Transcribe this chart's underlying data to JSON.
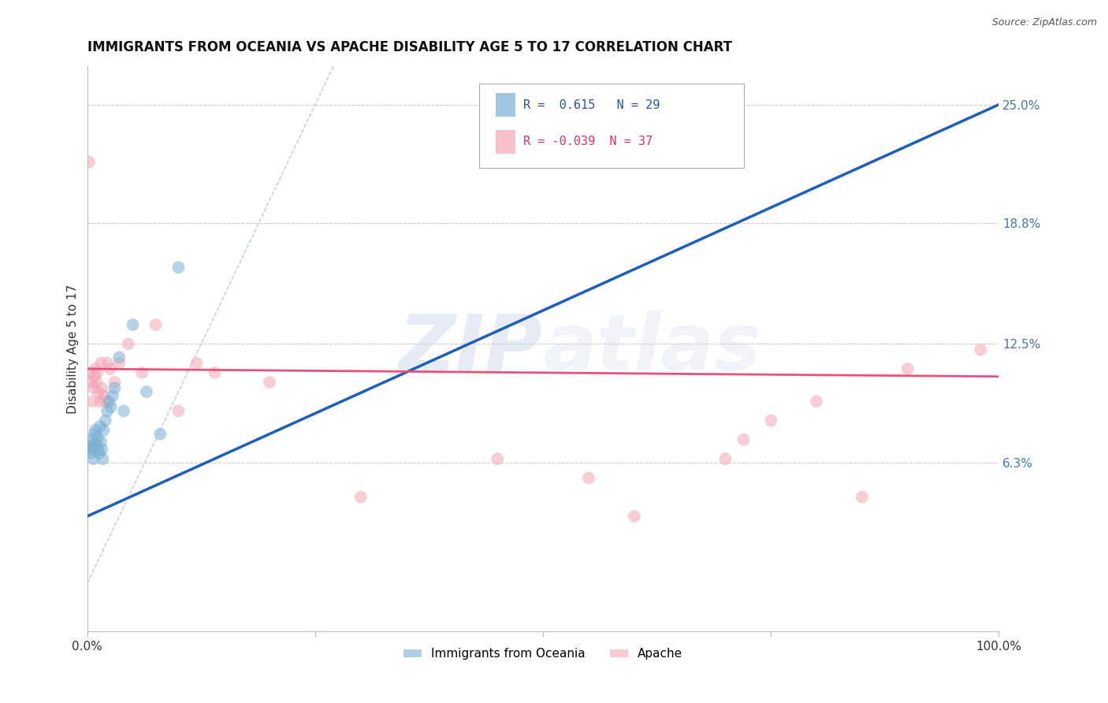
{
  "title": "IMMIGRANTS FROM OCEANIA VS APACHE DISABILITY AGE 5 TO 17 CORRELATION CHART",
  "source": "Source: ZipAtlas.com",
  "ylabel": "Disability Age 5 to 17",
  "xmin": 0.0,
  "xmax": 100.0,
  "ymin": -2.5,
  "ymax": 27.0,
  "ytick_labels": [
    "6.3%",
    "12.5%",
    "18.8%",
    "25.0%"
  ],
  "ytick_values": [
    6.3,
    12.5,
    18.8,
    25.0
  ],
  "legend_r1": "R =  0.615",
  "legend_n1": "N = 29",
  "legend_r2": "R = -0.039",
  "legend_n2": "N = 37",
  "blue_color": "#7BAFD4",
  "pink_color": "#F4A7B5",
  "trend_blue": "#1B5EBE",
  "trend_pink": "#E8527A",
  "ref_line_color": "#BBCCE0",
  "background_color": "#FFFFFF",
  "watermark_zip": "ZIP",
  "watermark_atlas": "atlas",
  "blue_scatter_x": [
    0.2,
    0.3,
    0.4,
    0.5,
    0.6,
    0.7,
    0.8,
    0.9,
    1.0,
    1.1,
    1.2,
    1.3,
    1.4,
    1.5,
    1.6,
    1.7,
    1.8,
    2.0,
    2.2,
    2.4,
    2.6,
    2.8,
    3.0,
    3.5,
    4.0,
    5.0,
    6.5,
    8.0,
    10.0
  ],
  "blue_scatter_y": [
    7.2,
    7.0,
    6.8,
    7.5,
    7.1,
    6.5,
    7.8,
    8.0,
    7.3,
    7.6,
    7.0,
    6.8,
    8.2,
    7.4,
    7.0,
    6.5,
    8.0,
    8.5,
    9.0,
    9.5,
    9.2,
    9.8,
    10.2,
    11.8,
    9.0,
    13.5,
    10.0,
    7.8,
    16.5
  ],
  "pink_scatter_x": [
    0.2,
    0.4,
    0.5,
    0.6,
    0.7,
    0.8,
    0.9,
    1.0,
    1.1,
    1.2,
    1.4,
    1.5,
    1.6,
    1.8,
    2.0,
    2.2,
    2.5,
    3.0,
    3.5,
    4.5,
    6.0,
    7.5,
    10.0,
    12.0,
    14.0,
    20.0,
    30.0,
    45.0,
    55.0,
    60.0,
    70.0,
    72.0,
    75.0,
    80.0,
    85.0,
    90.0,
    98.0
  ],
  "pink_scatter_y": [
    22.0,
    11.0,
    10.5,
    9.5,
    10.2,
    10.8,
    11.2,
    10.5,
    11.0,
    10.0,
    9.5,
    11.5,
    10.2,
    9.8,
    9.5,
    11.5,
    11.2,
    10.5,
    11.5,
    12.5,
    11.0,
    13.5,
    9.0,
    11.5,
    11.0,
    10.5,
    4.5,
    6.5,
    5.5,
    3.5,
    6.5,
    7.5,
    8.5,
    9.5,
    4.5,
    11.2,
    12.2
  ],
  "blue_trend_x0": 0.0,
  "blue_trend_y0": 3.5,
  "blue_trend_x1": 100.0,
  "blue_trend_y1": 25.0,
  "pink_trend_x0": 0.0,
  "pink_trend_y0": 11.2,
  "pink_trend_x1": 100.0,
  "pink_trend_y1": 10.8,
  "diag_x0": 0.0,
  "diag_y0": 0.0,
  "diag_x1": 27.0,
  "diag_y1": 27.0
}
